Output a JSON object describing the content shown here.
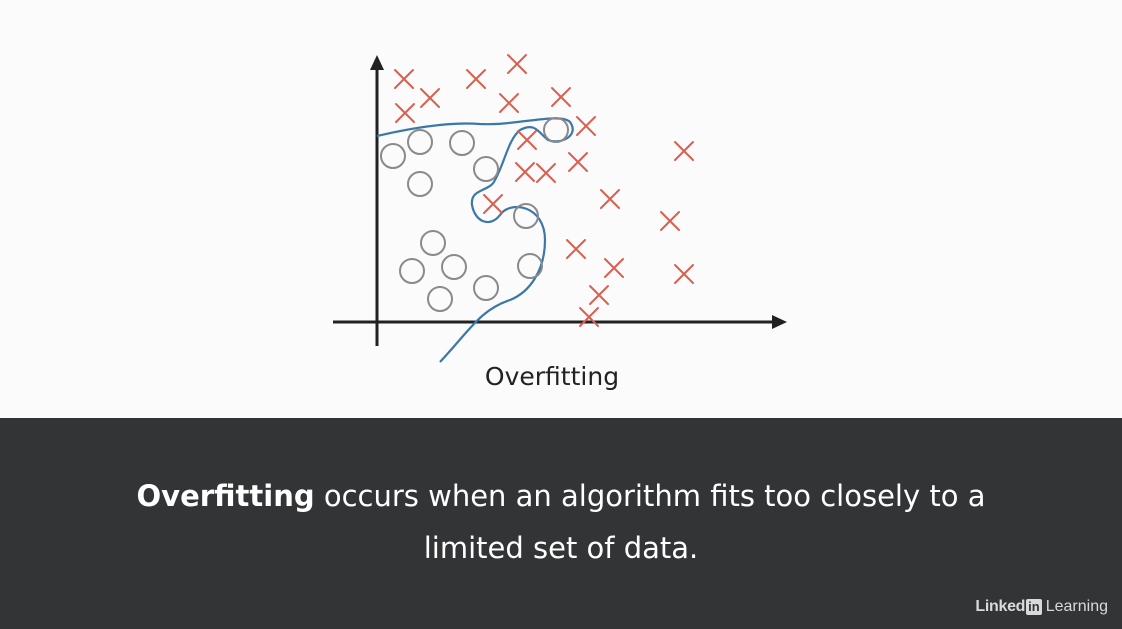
{
  "diagram": {
    "title": "Overfitting",
    "colors": {
      "class_a_marker": "#d9604f",
      "class_b_marker": "#8a8a8a",
      "decision_boundary": "#3b78a8",
      "axes": "#222222"
    },
    "class_a_marker_icon": "cross-icon",
    "class_b_marker_icon": "circle-icon"
  },
  "caption": {
    "term": "Overfitting",
    "text_line1": " occurs when an algorithm fits too closely to a",
    "text_line2": "limited set of data."
  },
  "brand": {
    "word": "Linked",
    "box": "in",
    "suffix": " Learning"
  }
}
